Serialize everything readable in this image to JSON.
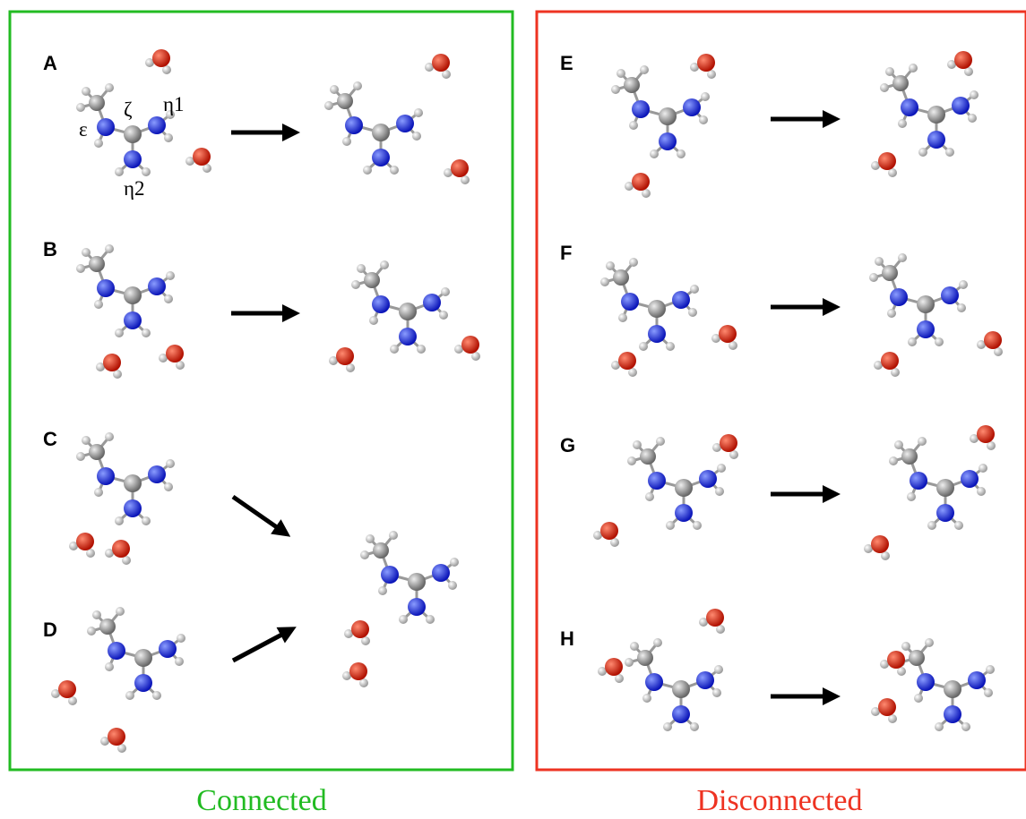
{
  "panels": [
    {
      "label": "A"
    },
    {
      "label": "B"
    },
    {
      "label": "C"
    },
    {
      "label": "D"
    },
    {
      "label": "E"
    },
    {
      "label": "F"
    },
    {
      "label": "G"
    },
    {
      "label": "H"
    }
  ],
  "atom_labels": [
    "ε",
    "ζ",
    "η1",
    "η2"
  ],
  "groups": [
    {
      "title": "Connected"
    },
    {
      "title": "Disconnected"
    }
  ]
}
